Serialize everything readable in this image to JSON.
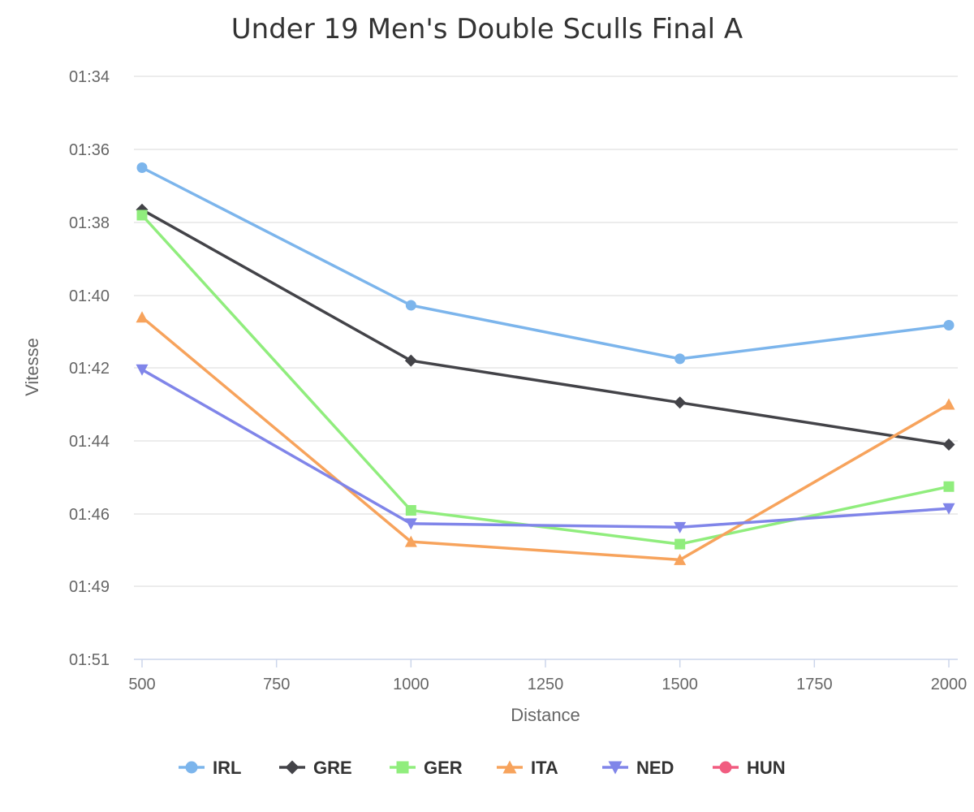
{
  "chart_data": {
    "type": "line",
    "title": "Under 19 Men's Double Sculls Final A",
    "xlabel": "Distance",
    "ylabel": "Vitesse",
    "x": [
      500,
      1000,
      1500,
      2000
    ],
    "x_ticks": [
      "500",
      "750",
      "1000",
      "1250",
      "1500",
      "1750",
      "2000"
    ],
    "y_ticks": [
      "01:34",
      "01:36",
      "01:38",
      "01:40",
      "01:42",
      "01:44",
      "01:46",
      "01:49",
      "01:51"
    ],
    "xlim": [
      500,
      2000
    ],
    "ylim_seconds": [
      94,
      110.1
    ],
    "y_reversed": true,
    "grid": true,
    "legend_position": "bottom",
    "series": [
      {
        "name": "IRL",
        "color": "#7cb5ec",
        "marker": "circle",
        "values_seconds": [
          96.5,
          100.27,
          101.75,
          100.82
        ]
      },
      {
        "name": "GRE",
        "color": "#434348",
        "marker": "diamond",
        "values_seconds": [
          97.65,
          101.8,
          102.95,
          104.1
        ]
      },
      {
        "name": "GER",
        "color": "#90ed7d",
        "marker": "square",
        "values_seconds": [
          97.8,
          105.9,
          107.25,
          105.25
        ]
      },
      {
        "name": "ITA",
        "color": "#f7a35c",
        "marker": "triangle",
        "values_seconds": [
          100.6,
          107.15,
          107.9,
          103.0
        ]
      },
      {
        "name": "NED",
        "color": "#8085e9",
        "marker": "triangle-down",
        "values_seconds": [
          102.05,
          106.4,
          106.55,
          105.85
        ]
      },
      {
        "name": "HUN",
        "color": "#f15c80",
        "marker": "circle",
        "values_seconds": []
      }
    ]
  }
}
